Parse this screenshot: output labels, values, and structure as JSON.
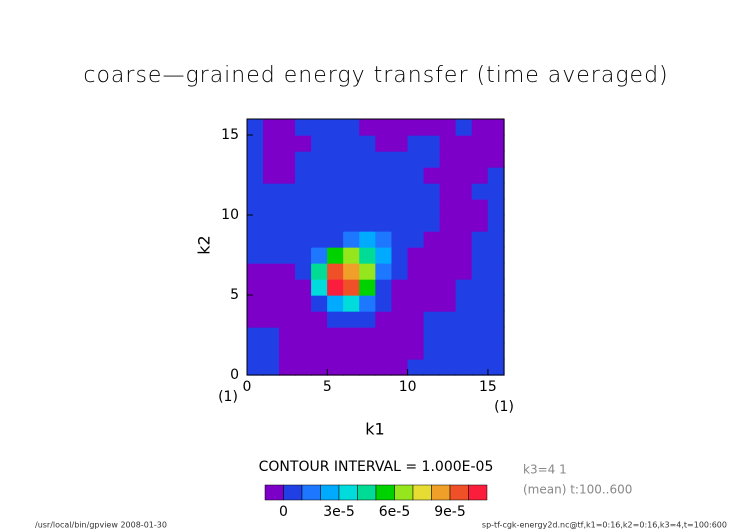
{
  "chart_data": {
    "type": "contour",
    "title": "coarse—grained energy transfer (time averaged)",
    "xlabel": "k1",
    "ylabel": "k2",
    "xlim": [
      0,
      16
    ],
    "ylim": [
      0,
      16
    ],
    "xticks": [
      0,
      5,
      10,
      15
    ],
    "yticks": [
      0,
      5,
      10,
      15
    ],
    "axis_notes": [
      "(1)",
      "(1)"
    ],
    "contour_label": "CONTOUR INTERVAL = 1.000E-05",
    "side_notes": [
      "k3=4 1",
      "(mean) t:100..600"
    ],
    "footer_left": "/usr/local/bin/gpview  2008-01-30",
    "footer_right": "sp-tf-cgk-energy2d.nc@tf,k1=0:16,k2=0:16,k3=4,t=100:600",
    "levels": [
      0,
      1e-05,
      2e-05,
      3e-05,
      4e-05,
      5e-05,
      6e-05,
      7e-05,
      8e-05,
      9e-05,
      0.0001
    ],
    "colors": [
      "#7d00c8",
      "#2040e6",
      "#1e78ff",
      "#00aaff",
      "#00dcdc",
      "#00dc96",
      "#00d200",
      "#96e61e",
      "#e6dc32",
      "#f0a028",
      "#f05028",
      "#fa1e3c"
    ],
    "colorbar_ticks": [
      0,
      {
        "value": 3e-05,
        "label": "3e-5"
      },
      {
        "value": 6e-05,
        "label": "6e-5"
      },
      {
        "value": 9e-05,
        "label": "9e-5"
      }
    ],
    "z": [
      [
        5e-06,
        5e-06,
        -5e-06,
        -5e-06,
        -5e-06,
        -5e-06,
        -5e-06,
        -5e-06,
        -5e-06,
        -5e-06,
        5e-06,
        5e-06,
        5e-06,
        5e-06,
        5e-06,
        5e-06
      ],
      [
        5e-06,
        5e-06,
        -5e-06,
        -5e-06,
        -5e-06,
        -5e-06,
        -5e-06,
        -5e-06,
        -5e-06,
        -5e-06,
        -5e-06,
        5e-06,
        5e-06,
        5e-06,
        5e-06,
        5e-06
      ],
      [
        5e-06,
        5e-06,
        -5e-06,
        -5e-06,
        -5e-06,
        -5e-06,
        -5e-06,
        -5e-06,
        -5e-06,
        -5e-06,
        -5e-06,
        5e-06,
        5e-06,
        5e-06,
        5e-06,
        5e-06
      ],
      [
        -5e-06,
        -5e-06,
        -5e-06,
        -5e-06,
        -5e-06,
        5e-06,
        5e-06,
        5e-06,
        -5e-06,
        -5e-06,
        -5e-06,
        5e-06,
        5e-06,
        5e-06,
        5e-06,
        5e-06
      ],
      [
        -5e-06,
        -5e-06,
        -5e-06,
        -5e-06,
        5e-06,
        2.5e-05,
        3.5e-05,
        1.5e-05,
        5e-06,
        -5e-06,
        -5e-06,
        -5e-06,
        -5e-06,
        5e-06,
        5e-06,
        5e-06
      ],
      [
        -5e-06,
        -5e-06,
        -5e-06,
        -5e-06,
        3.5e-05,
        0.000105,
        9.5e-05,
        5.5e-05,
        5e-06,
        -5e-06,
        -5e-06,
        -5e-06,
        -5e-06,
        5e-06,
        5e-06,
        5e-06
      ],
      [
        -5e-06,
        -5e-06,
        -5e-06,
        5e-06,
        4.5e-05,
        9.5e-05,
        8.5e-05,
        6.5e-05,
        1.5e-05,
        5e-06,
        -5e-06,
        -5e-06,
        -5e-06,
        -5e-06,
        5e-06,
        5e-06
      ],
      [
        5e-06,
        5e-06,
        5e-06,
        5e-06,
        1.5e-05,
        5.5e-05,
        6.5e-05,
        4.5e-05,
        2.5e-05,
        8e-06,
        -5e-06,
        -5e-06,
        -5e-06,
        -5e-06,
        5e-06,
        5e-06
      ],
      [
        5e-06,
        5e-06,
        5e-06,
        5e-06,
        5e-06,
        5e-06,
        1.5e-05,
        2.5e-05,
        1.5e-05,
        5e-06,
        5e-06,
        -5e-06,
        -5e-06,
        -5e-06,
        5e-06,
        5e-06
      ],
      [
        5e-06,
        5e-06,
        5e-06,
        5e-06,
        5e-06,
        5e-06,
        5e-06,
        5e-06,
        5e-06,
        5e-06,
        5e-06,
        5e-06,
        -5e-06,
        -5e-06,
        -5e-06,
        5e-06
      ],
      [
        5e-06,
        5e-06,
        5e-06,
        5e-06,
        5e-06,
        5e-06,
        5e-06,
        5e-06,
        5e-06,
        5e-06,
        5e-06,
        5e-06,
        -5e-06,
        -5e-06,
        -5e-06,
        5e-06
      ],
      [
        5e-06,
        5e-06,
        5e-06,
        5e-06,
        5e-06,
        5e-06,
        5e-06,
        5e-06,
        5e-06,
        5e-06,
        5e-06,
        5e-06,
        -5e-06,
        -5e-06,
        5e-06,
        5e-06
      ],
      [
        5e-06,
        -5e-06,
        -5e-06,
        5e-06,
        5e-06,
        5e-06,
        5e-06,
        5e-06,
        5e-06,
        5e-06,
        5e-06,
        -5e-06,
        -5e-06,
        -5e-06,
        -5e-06,
        5e-06
      ],
      [
        5e-06,
        -5e-06,
        -5e-06,
        5e-06,
        5e-06,
        5e-06,
        5e-06,
        5e-06,
        5e-06,
        5e-06,
        5e-06,
        5e-06,
        -5e-06,
        -5e-06,
        -5e-06,
        -5e-06
      ],
      [
        5e-06,
        -5e-06,
        -5e-06,
        -5e-06,
        5e-06,
        5e-06,
        5e-06,
        5e-06,
        -5e-06,
        -5e-06,
        5e-06,
        5e-06,
        -5e-06,
        -5e-06,
        -5e-06,
        -5e-06
      ],
      [
        5e-06,
        -5e-06,
        -5e-06,
        5e-06,
        5e-06,
        5e-06,
        5e-06,
        -5e-06,
        -5e-06,
        -5e-06,
        -5e-06,
        -5e-06,
        -5e-06,
        5e-06,
        -5e-06,
        -5e-06
      ]
    ]
  }
}
